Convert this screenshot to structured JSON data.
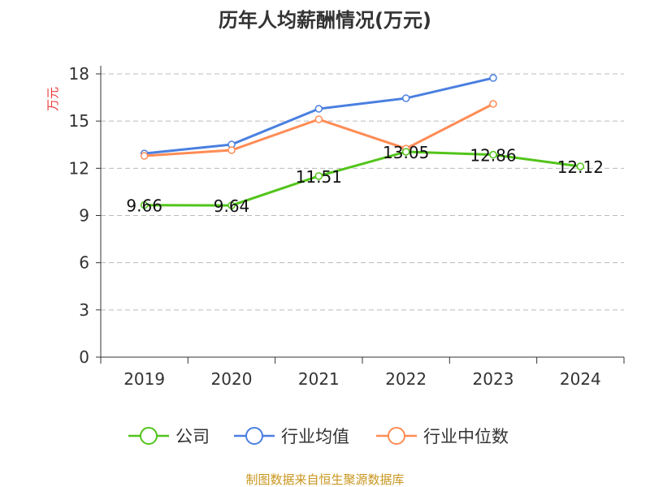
{
  "chart_data": {
    "type": "line",
    "title": "历年人均薪酬情况(万元)",
    "ylabel": "万元",
    "xlabel": "",
    "categories": [
      "2019",
      "2020",
      "2021",
      "2022",
      "2023",
      "2024"
    ],
    "ylim": [
      0,
      18
    ],
    "yticks": [
      "0",
      "3",
      "6",
      "9",
      "12",
      "15",
      "18"
    ],
    "grid": true,
    "legend_placement": "bottom",
    "series": [
      {
        "name": "公司",
        "color": "#52c41a",
        "values": [
          9.66,
          9.64,
          11.51,
          13.05,
          12.86,
          12.12
        ],
        "labels": [
          "9.66",
          "9.64",
          "11.51",
          "13.05",
          "12.86",
          "12.12"
        ]
      },
      {
        "name": "行业均值",
        "color": "#4a7fe0",
        "values": [
          12.94,
          13.51,
          15.78,
          16.45,
          17.74,
          null
        ]
      },
      {
        "name": "行业中位数",
        "color": "#ff8c55",
        "values": [
          12.79,
          13.15,
          15.11,
          13.25,
          16.09,
          null
        ]
      }
    ]
  },
  "source": "制图数据来自恒生聚源数据库"
}
